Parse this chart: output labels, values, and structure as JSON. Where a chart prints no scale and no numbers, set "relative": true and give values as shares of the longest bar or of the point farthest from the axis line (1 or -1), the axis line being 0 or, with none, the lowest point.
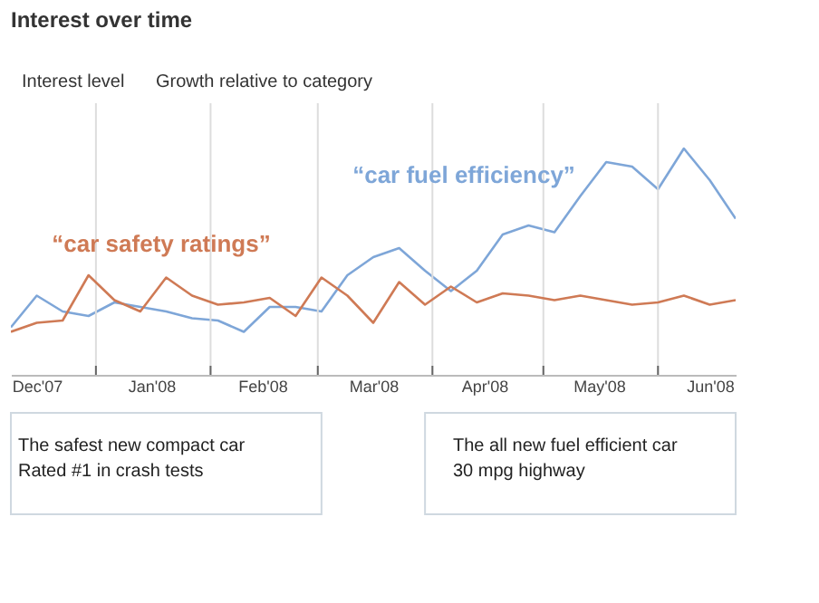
{
  "chart_data": {
    "type": "line",
    "title": "Interest over time",
    "x": [
      "2007-12-09",
      "2007-12-16",
      "2007-12-23",
      "2007-12-30",
      "2008-01-06",
      "2008-01-13",
      "2008-01-20",
      "2008-01-27",
      "2008-02-03",
      "2008-02-10",
      "2008-02-17",
      "2008-02-24",
      "2008-03-02",
      "2008-03-09",
      "2008-03-16",
      "2008-03-23",
      "2008-03-30",
      "2008-04-06",
      "2008-04-13",
      "2008-04-20",
      "2008-04-27",
      "2008-05-04",
      "2008-05-11",
      "2008-05-18",
      "2008-05-25",
      "2008-06-01",
      "2008-06-08",
      "2008-06-15",
      "2008-06-22"
    ],
    "series": [
      {
        "name": "“car fuel efficiency”",
        "color": "#7ea6d8",
        "values": [
          0.21,
          0.35,
          0.28,
          0.26,
          0.32,
          0.3,
          0.28,
          0.25,
          0.24,
          0.19,
          0.3,
          0.3,
          0.28,
          0.44,
          0.52,
          0.56,
          0.46,
          0.37,
          0.46,
          0.62,
          0.66,
          0.63,
          0.79,
          0.94,
          0.92,
          0.82,
          1,
          0.86,
          0.69
        ]
      },
      {
        "name": "“car safety ratings”",
        "color": "#cf7a55",
        "values": [
          0.19,
          0.23,
          0.24,
          0.44,
          0.33,
          0.28,
          0.43,
          0.35,
          0.31,
          0.32,
          0.34,
          0.26,
          0.43,
          0.35,
          0.23,
          0.41,
          0.31,
          0.39,
          0.32,
          0.36,
          0.35,
          0.33,
          0.35,
          0.33,
          0.31,
          0.32,
          0.35,
          0.31,
          0.33
        ]
      }
    ],
    "relative": true,
    "xlim": [
      "2007-12-09",
      "2008-06-22"
    ],
    "xticks": [
      {
        "value": "2007-12-16",
        "label": "Dec'07"
      },
      {
        "value": "2008-01-01",
        "label": null
      },
      {
        "value": "2008-01-16",
        "label": "Jan'08"
      },
      {
        "value": "2008-02-01",
        "label": null
      },
      {
        "value": "2008-02-15",
        "label": "Feb'08"
      },
      {
        "value": "2008-03-01",
        "label": null
      },
      {
        "value": "2008-03-16",
        "label": "Mar'08"
      },
      {
        "value": "2008-04-01",
        "label": null
      },
      {
        "value": "2008-04-15",
        "label": "Apr'08"
      },
      {
        "value": "2008-05-01",
        "label": null
      },
      {
        "value": "2008-05-16",
        "label": "May'08"
      },
      {
        "value": "2008-06-01",
        "label": null
      },
      {
        "value": "2008-06-15",
        "label": "Jun'08"
      }
    ],
    "grid": "x",
    "legend": false,
    "line_style": "solid",
    "annotations": [
      "Interest level",
      "Growth relative to category",
      "The safest new compact car",
      "Rated #1 in crash tests",
      "The all new fuel efficient car",
      "30 mpg highway"
    ]
  }
}
